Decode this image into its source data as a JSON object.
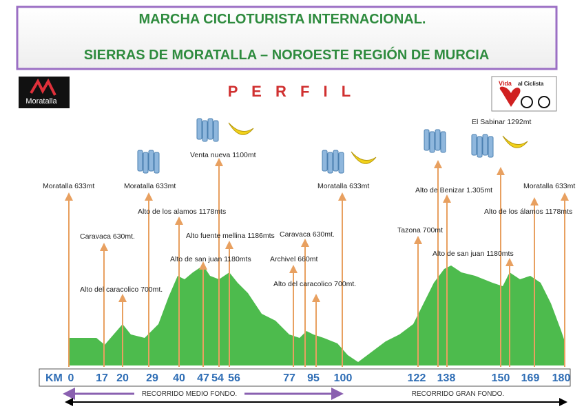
{
  "header": {
    "title_line1": "MARCHA CICLOTURISTA INTERNACIONAL.",
    "title_line2": "SIERRAS DE MORATALLA – NOROESTE REGIÓN DE MURCIA"
  },
  "logos": {
    "left": "Moratalla",
    "right_1": "Vida",
    "right_2": "al Ciclista"
  },
  "profile_label": "P E R F I L",
  "annotations": [
    "Moratalla 633mt",
    "Caravaca 630mt.",
    "Alto del caracolico 700mt.",
    "Moratalla 633mt",
    "Alto de los alamos 1178mts",
    "Alto fuente mellina 1186mts",
    "Alto de san juan 1180mts",
    "Venta nueva 1100mt",
    "Caravaca 630mt.",
    "Archivel 660mt",
    "Alto del caracolico 700mt.",
    "Moratalla 633mt",
    "Tazona 700mt",
    "Alto de Benizar 1.305mt",
    "Alto de san juan 1180mts",
    "El Sabinar 1292mt",
    "Alto de los álamos 1178mts",
    "Moratalla 633mt"
  ],
  "km_axis": {
    "unit": "KM",
    "marks": [
      0,
      17,
      20,
      29,
      40,
      47,
      54,
      56,
      77,
      95,
      100,
      122,
      138,
      150,
      169,
      180
    ]
  },
  "routes": {
    "medio": "RECORRIDO MEDIO FONDO.",
    "gran": "RECORRIDO GRAN FONDO."
  }
}
